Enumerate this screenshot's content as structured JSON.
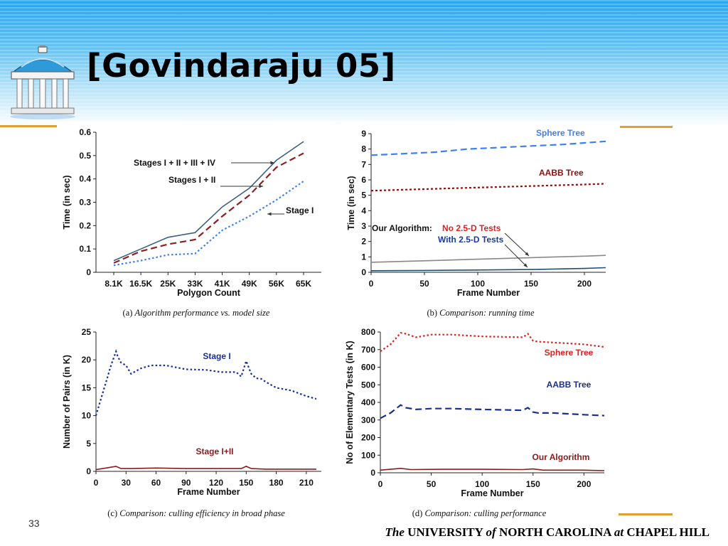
{
  "slide": {
    "title": "[Govindaraju 05]",
    "slide_number": "33",
    "footer": {
      "part1": "The",
      "part2": " UNIVERSITY ",
      "part3": "of",
      "part4": " NORTH CAROLINA ",
      "part5": "at",
      "part6": " CHAPEL HILL"
    },
    "colors": {
      "gold": "#e0a030",
      "header_blue": "#27a6ee"
    },
    "logo_icon": "old-well-icon"
  },
  "chart_data": [
    {
      "id": "a",
      "type": "line",
      "caption_prefix": "(a) ",
      "caption": "Algorithm performance vs. model size",
      "xlabel": "Polygon Count",
      "ylabel": "Time (in sec)",
      "categories": [
        "8.1K",
        "16.5K",
        "25K",
        "33K",
        "41K",
        "49K",
        "56K",
        "65K"
      ],
      "ylim": [
        0,
        0.6
      ],
      "yticks": [
        "0",
        "0.1",
        "0.2",
        "0.3",
        "0.4",
        "0.5",
        "0.6"
      ],
      "series": [
        {
          "name": "Stages  I + II + III + IV",
          "color": "#3f5f7f",
          "dash": "solid",
          "values": [
            0.05,
            0.1,
            0.15,
            0.17,
            0.28,
            0.36,
            0.48,
            0.56
          ]
        },
        {
          "name": "Stages I + II",
          "color": "#8b2020",
          "dash": "longdash",
          "values": [
            0.04,
            0.09,
            0.12,
            0.14,
            0.24,
            0.33,
            0.45,
            0.51
          ]
        },
        {
          "name": "Stage I",
          "color": "#3f7fef",
          "dash": "dot",
          "values": [
            0.03,
            0.05,
            0.075,
            0.08,
            0.18,
            0.24,
            0.31,
            0.39
          ]
        }
      ]
    },
    {
      "id": "b",
      "type": "line",
      "caption_prefix": "(b) ",
      "caption": "Comparison: running time",
      "xlabel": "Frame Number",
      "ylabel": "Time (in sec)",
      "xlim": [
        0,
        220
      ],
      "xticks": [
        0,
        50,
        100,
        150,
        200
      ],
      "ylim": [
        0,
        9
      ],
      "yticks": [
        0,
        1,
        2,
        3,
        4,
        5,
        6,
        7,
        8,
        9
      ],
      "annotation_prefix": "Our Algorithm: ",
      "series": [
        {
          "name": "Sphere Tree",
          "color": "#3f7fef",
          "dash": "longdash",
          "x": [
            0,
            30,
            60,
            90,
            120,
            150,
            180,
            200,
            220
          ],
          "values": [
            7.6,
            7.7,
            7.8,
            8.0,
            8.1,
            8.2,
            8.3,
            8.4,
            8.5
          ]
        },
        {
          "name": "AABB Tree",
          "color": "#8b1010",
          "dash": "dashdot",
          "x": [
            0,
            50,
            100,
            150,
            200,
            220
          ],
          "values": [
            5.3,
            5.4,
            5.5,
            5.6,
            5.7,
            5.75
          ]
        },
        {
          "name": "No 2.5-D Tests",
          "color": "#e02020",
          "line_color": "#888888",
          "dash": "solid",
          "x": [
            0,
            50,
            100,
            150,
            200,
            220
          ],
          "values": [
            0.65,
            0.75,
            0.85,
            0.95,
            1.05,
            1.1
          ]
        },
        {
          "name": "With 2.5-D Tests",
          "color": "#1a3aa0",
          "line_color": "#1f4f6f",
          "dash": "solid",
          "x": [
            0,
            50,
            100,
            150,
            200,
            220
          ],
          "values": [
            0.1,
            0.12,
            0.15,
            0.18,
            0.25,
            0.3
          ]
        }
      ]
    },
    {
      "id": "c",
      "type": "line",
      "caption_prefix": "(c) ",
      "caption": "Comparison: culling efficiency in broad phase",
      "xlabel": "Frame Number",
      "ylabel": "Number of Pairs (in K)",
      "xlim": [
        0,
        225
      ],
      "xticks": [
        0,
        30,
        60,
        90,
        120,
        150,
        180,
        210
      ],
      "ylim": [
        0,
        25
      ],
      "yticks": [
        0,
        5,
        10,
        15,
        20,
        25
      ],
      "series": [
        {
          "name": "Stage I",
          "color": "#1a2f9f",
          "dash": "dot",
          "x": [
            0,
            5,
            10,
            15,
            20,
            22,
            25,
            30,
            35,
            45,
            55,
            70,
            90,
            110,
            125,
            140,
            145,
            150,
            155,
            160,
            165,
            170,
            180,
            195,
            210,
            220
          ],
          "values": [
            10,
            13,
            16,
            19,
            21.5,
            20.5,
            19.5,
            19,
            17.5,
            18.5,
            19,
            19,
            18.3,
            18.2,
            17.8,
            17.8,
            17,
            19.8,
            17.5,
            16.7,
            16.6,
            16,
            15,
            14.5,
            13.5,
            13
          ]
        },
        {
          "name": "Stage I+II",
          "color": "#8b1a1a",
          "dash": "solid",
          "x": [
            0,
            10,
            20,
            25,
            35,
            60,
            90,
            120,
            145,
            150,
            155,
            170,
            200,
            220
          ],
          "values": [
            0.3,
            0.6,
            0.9,
            0.5,
            0.5,
            0.6,
            0.5,
            0.5,
            0.5,
            0.9,
            0.5,
            0.4,
            0.4,
            0.4
          ]
        }
      ]
    },
    {
      "id": "d",
      "type": "line",
      "caption_prefix": "(d) ",
      "caption": "Comparison: culling performance",
      "xlabel": "Frame Number",
      "ylabel": "No of Elementary Tests (in K)",
      "xlim": [
        0,
        220
      ],
      "xticks": [
        0,
        50,
        100,
        150,
        200
      ],
      "ylim": [
        0,
        800
      ],
      "yticks": [
        0,
        100,
        200,
        300,
        400,
        500,
        600,
        700,
        800
      ],
      "series": [
        {
          "name": "Sphere Tree",
          "color": "#e02020",
          "dash": "dot",
          "x": [
            0,
            10,
            20,
            25,
            35,
            50,
            70,
            100,
            140,
            145,
            150,
            155,
            170,
            200,
            220
          ],
          "values": [
            690,
            730,
            795,
            790,
            770,
            785,
            785,
            775,
            770,
            790,
            750,
            745,
            740,
            730,
            715
          ]
        },
        {
          "name": "AABB Tree",
          "color": "#1a2f8f",
          "dash": "longdash",
          "x": [
            0,
            10,
            20,
            25,
            35,
            50,
            70,
            100,
            140,
            145,
            150,
            155,
            170,
            200,
            220
          ],
          "values": [
            310,
            340,
            385,
            370,
            360,
            365,
            365,
            360,
            355,
            370,
            345,
            340,
            340,
            330,
            325
          ]
        },
        {
          "name": "Our Algorithm",
          "color": "#8b1a1a",
          "dash": "solid",
          "x": [
            0,
            20,
            30,
            60,
            100,
            140,
            150,
            160,
            200,
            220
          ],
          "values": [
            15,
            25,
            18,
            20,
            20,
            18,
            22,
            15,
            15,
            12
          ]
        }
      ]
    }
  ]
}
